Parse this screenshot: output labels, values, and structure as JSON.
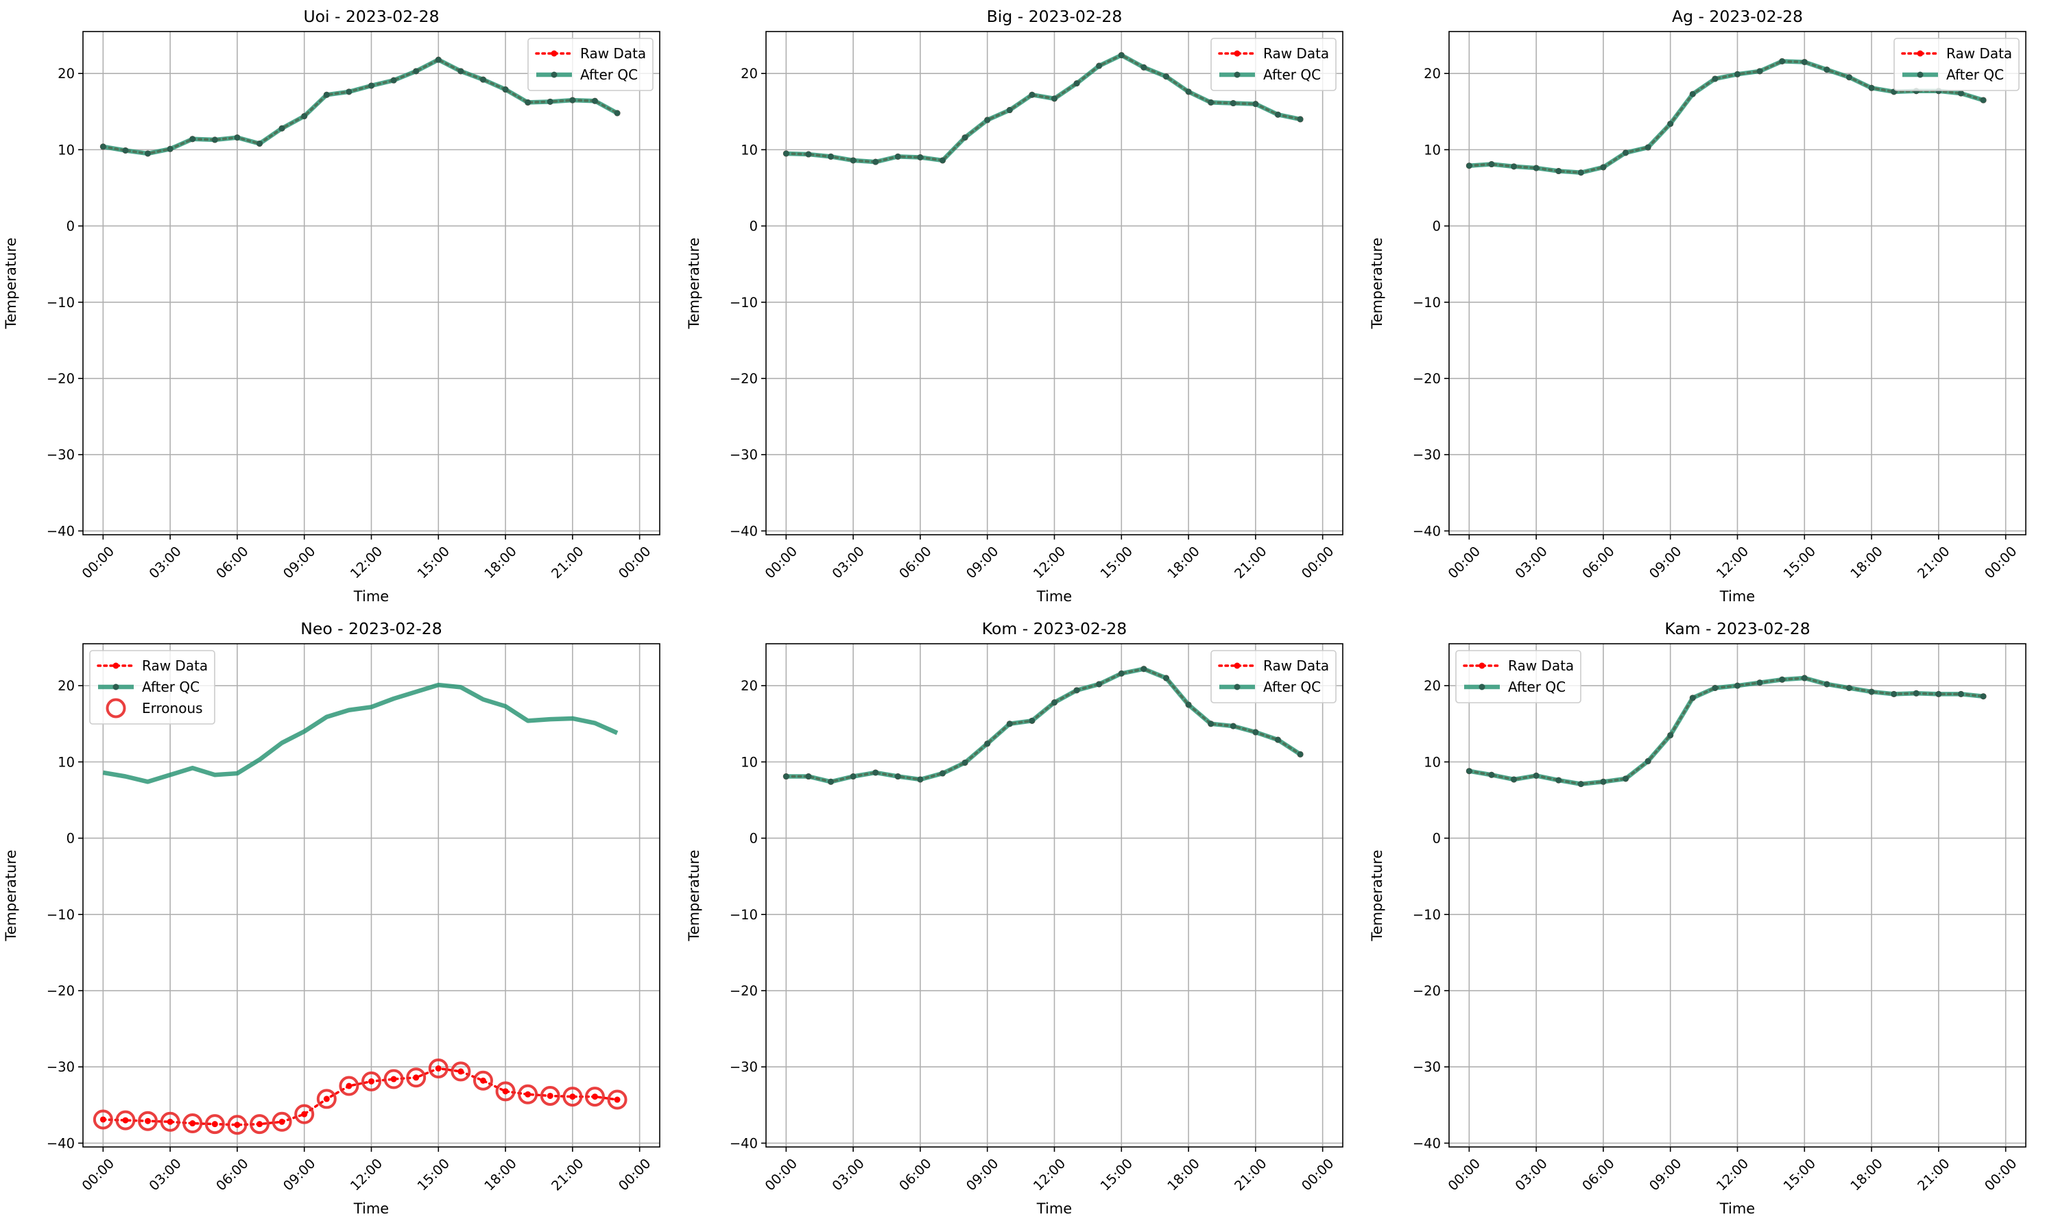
{
  "figure": {
    "colors": {
      "raw": "#ff0000",
      "qc": "#20906e",
      "qc_marker": "#2c5e4f",
      "erroneous": "#e82a2a",
      "grid": "#b0b0b0"
    }
  },
  "chart_data": [
    {
      "type": "line",
      "title": "Uoi - 2023-02-28",
      "xlabel": "Time",
      "ylabel": "Temperature",
      "xticks": [
        "00:00",
        "03:00",
        "06:00",
        "09:00",
        "12:00",
        "15:00",
        "18:00",
        "21:00",
        "00:00"
      ],
      "xlim": [
        -0.9,
        24.9
      ],
      "yticks": [
        20,
        10,
        0,
        -10,
        -20,
        -30,
        -40
      ],
      "ytick_labels": [
        "20",
        "10",
        "0",
        "−10",
        "−20",
        "−30",
        "−40"
      ],
      "ylim": [
        -40.5,
        25.5
      ],
      "grid": true,
      "legend_position": "upper right",
      "legend": [
        "Raw Data",
        "After QC"
      ],
      "x": [
        0,
        1,
        2,
        3,
        4,
        5,
        6,
        7,
        8,
        9,
        10,
        11,
        12,
        13,
        14,
        15,
        16,
        17,
        18,
        19,
        20,
        21,
        22,
        23
      ],
      "series": [
        {
          "name": "Raw Data",
          "style": "raw",
          "values": [
            10.4,
            9.9,
            9.5,
            10.1,
            11.4,
            11.3,
            11.6,
            10.8,
            12.8,
            14.4,
            17.2,
            17.6,
            18.4,
            19.1,
            20.3,
            21.8,
            20.3,
            19.2,
            17.9,
            16.2,
            16.3,
            16.5,
            16.4,
            14.8
          ]
        },
        {
          "name": "After QC",
          "style": "qc",
          "values": [
            10.4,
            9.9,
            9.5,
            10.1,
            11.4,
            11.3,
            11.6,
            10.8,
            12.8,
            14.4,
            17.2,
            17.6,
            18.4,
            19.1,
            20.3,
            21.8,
            20.3,
            19.2,
            17.9,
            16.2,
            16.3,
            16.5,
            16.4,
            14.8
          ]
        }
      ]
    },
    {
      "type": "line",
      "title": "Big - 2023-02-28",
      "xlabel": "Time",
      "ylabel": "Temperature",
      "xticks": [
        "00:00",
        "03:00",
        "06:00",
        "09:00",
        "12:00",
        "15:00",
        "18:00",
        "21:00",
        "00:00"
      ],
      "xlim": [
        -0.9,
        24.9
      ],
      "yticks": [
        20,
        10,
        0,
        -10,
        -20,
        -30,
        -40
      ],
      "ytick_labels": [
        "20",
        "10",
        "0",
        "−10",
        "−20",
        "−30",
        "−40"
      ],
      "ylim": [
        -40.5,
        25.5
      ],
      "grid": true,
      "legend_position": "upper right",
      "legend": [
        "Raw Data",
        "After QC"
      ],
      "x": [
        0,
        1,
        2,
        3,
        4,
        5,
        6,
        7,
        8,
        9,
        10,
        11,
        12,
        13,
        14,
        15,
        16,
        17,
        18,
        19,
        20,
        21,
        22,
        23
      ],
      "series": [
        {
          "name": "Raw Data",
          "style": "raw",
          "values": [
            9.5,
            9.4,
            9.1,
            8.6,
            8.4,
            9.1,
            9.0,
            8.6,
            11.6,
            13.9,
            15.2,
            17.2,
            16.7,
            18.7,
            21.0,
            22.4,
            20.8,
            19.6,
            17.6,
            16.2,
            16.1,
            16.0,
            14.6,
            14.0
          ]
        },
        {
          "name": "After QC",
          "style": "qc",
          "values": [
            9.5,
            9.4,
            9.1,
            8.6,
            8.4,
            9.1,
            9.0,
            8.6,
            11.6,
            13.9,
            15.2,
            17.2,
            16.7,
            18.7,
            21.0,
            22.4,
            20.8,
            19.6,
            17.6,
            16.2,
            16.1,
            16.0,
            14.6,
            14.0
          ]
        }
      ]
    },
    {
      "type": "line",
      "title": "Ag - 2023-02-28",
      "xlabel": "Time",
      "ylabel": "Temperature",
      "xticks": [
        "00:00",
        "03:00",
        "06:00",
        "09:00",
        "12:00",
        "15:00",
        "18:00",
        "21:00",
        "00:00"
      ],
      "xlim": [
        -0.9,
        24.9
      ],
      "yticks": [
        20,
        10,
        0,
        -10,
        -20,
        -30,
        -40
      ],
      "ytick_labels": [
        "20",
        "10",
        "0",
        "−10",
        "−20",
        "−30",
        "−40"
      ],
      "ylim": [
        -40.5,
        25.5
      ],
      "grid": true,
      "legend_position": "upper right",
      "legend": [
        "Raw Data",
        "After QC"
      ],
      "x": [
        0,
        1,
        2,
        3,
        4,
        5,
        6,
        7,
        8,
        9,
        10,
        11,
        12,
        13,
        14,
        15,
        16,
        17,
        18,
        19,
        20,
        21,
        22,
        23
      ],
      "series": [
        {
          "name": "Raw Data",
          "style": "raw",
          "values": [
            7.9,
            8.1,
            7.8,
            7.6,
            7.2,
            7.0,
            7.7,
            9.6,
            10.3,
            13.4,
            17.3,
            19.3,
            19.9,
            20.3,
            21.6,
            21.5,
            20.5,
            19.5,
            18.1,
            17.6,
            17.7,
            17.7,
            17.4,
            16.5
          ]
        },
        {
          "name": "After QC",
          "style": "qc",
          "values": [
            7.9,
            8.1,
            7.8,
            7.6,
            7.2,
            7.0,
            7.7,
            9.6,
            10.3,
            13.4,
            17.3,
            19.3,
            19.9,
            20.3,
            21.6,
            21.5,
            20.5,
            19.5,
            18.1,
            17.6,
            17.7,
            17.7,
            17.4,
            16.5
          ]
        }
      ]
    },
    {
      "type": "line",
      "title": "Neo - 2023-02-28",
      "xlabel": "Time",
      "ylabel": "Temperature",
      "xticks": [
        "00:00",
        "03:00",
        "06:00",
        "09:00",
        "12:00",
        "15:00",
        "18:00",
        "21:00",
        "00:00"
      ],
      "xlim": [
        -0.9,
        24.9
      ],
      "yticks": [
        20,
        10,
        0,
        -10,
        -20,
        -30,
        -40
      ],
      "ytick_labels": [
        "20",
        "10",
        "0",
        "−10",
        "−20",
        "−30",
        "−40"
      ],
      "ylim": [
        -40.5,
        25.5
      ],
      "grid": true,
      "legend_position": "upper left",
      "legend": [
        "Raw Data",
        "After QC",
        "Erronous"
      ],
      "x": [
        0,
        1,
        2,
        3,
        4,
        5,
        6,
        7,
        8,
        9,
        10,
        11,
        12,
        13,
        14,
        15,
        16,
        17,
        18,
        19,
        20,
        21,
        22,
        23
      ],
      "series": [
        {
          "name": "Raw Data",
          "style": "raw",
          "values": [
            -36.9,
            -37.0,
            -37.1,
            -37.2,
            -37.4,
            -37.5,
            -37.6,
            -37.5,
            -37.2,
            -36.2,
            -34.2,
            -32.5,
            -31.9,
            -31.6,
            -31.4,
            -30.2,
            -30.6,
            -31.8,
            -33.2,
            -33.6,
            -33.8,
            -33.9,
            -33.9,
            -34.3
          ]
        },
        {
          "name": "After QC",
          "style": "qc_line",
          "values": [
            8.6,
            8.1,
            7.4,
            8.3,
            9.2,
            8.3,
            8.5,
            10.3,
            12.5,
            14.0,
            15.9,
            16.8,
            17.2,
            18.3,
            19.2,
            20.1,
            19.8,
            18.2,
            17.3,
            15.4,
            15.6,
            15.7,
            15.1,
            13.8
          ]
        },
        {
          "name": "Erronous",
          "style": "erroneous",
          "values": [
            -36.9,
            -37.0,
            -37.1,
            -37.2,
            -37.4,
            -37.5,
            -37.6,
            -37.5,
            -37.2,
            -36.2,
            -34.2,
            -32.5,
            -31.9,
            -31.6,
            -31.4,
            -30.2,
            -30.6,
            -31.8,
            -33.2,
            -33.6,
            -33.8,
            -33.9,
            -33.9,
            -34.3
          ]
        }
      ]
    },
    {
      "type": "line",
      "title": "Kom - 2023-02-28",
      "xlabel": "Time",
      "ylabel": "Temperature",
      "xticks": [
        "00:00",
        "03:00",
        "06:00",
        "09:00",
        "12:00",
        "15:00",
        "18:00",
        "21:00",
        "00:00"
      ],
      "xlim": [
        -0.9,
        24.9
      ],
      "yticks": [
        20,
        10,
        0,
        -10,
        -20,
        -30,
        -40
      ],
      "ytick_labels": [
        "20",
        "10",
        "0",
        "−10",
        "−20",
        "−30",
        "−40"
      ],
      "ylim": [
        -40.5,
        25.5
      ],
      "grid": true,
      "legend_position": "upper right",
      "legend": [
        "Raw Data",
        "After QC"
      ],
      "x": [
        0,
        1,
        2,
        3,
        4,
        5,
        6,
        7,
        8,
        9,
        10,
        11,
        12,
        13,
        14,
        15,
        16,
        17,
        18,
        19,
        20,
        21,
        22,
        23
      ],
      "series": [
        {
          "name": "Raw Data",
          "style": "raw",
          "values": [
            8.1,
            8.1,
            7.4,
            8.1,
            8.6,
            8.1,
            7.7,
            8.5,
            9.9,
            12.4,
            15.0,
            15.4,
            17.8,
            19.4,
            20.2,
            21.6,
            22.2,
            21.0,
            17.5,
            15.0,
            14.7,
            13.9,
            12.9,
            11.0
          ]
        },
        {
          "name": "After QC",
          "style": "qc",
          "values": [
            8.1,
            8.1,
            7.4,
            8.1,
            8.6,
            8.1,
            7.7,
            8.5,
            9.9,
            12.4,
            15.0,
            15.4,
            17.8,
            19.4,
            20.2,
            21.6,
            22.2,
            21.0,
            17.5,
            15.0,
            14.7,
            13.9,
            12.9,
            11.0
          ]
        }
      ]
    },
    {
      "type": "line",
      "title": "Kam - 2023-02-28",
      "xlabel": "Time",
      "ylabel": "Temperature",
      "xticks": [
        "00:00",
        "03:00",
        "06:00",
        "09:00",
        "12:00",
        "15:00",
        "18:00",
        "21:00",
        "00:00"
      ],
      "xlim": [
        -0.9,
        24.9
      ],
      "yticks": [
        20,
        10,
        0,
        -10,
        -20,
        -30,
        -40
      ],
      "ytick_labels": [
        "20",
        "10",
        "0",
        "−10",
        "−20",
        "−30",
        "−40"
      ],
      "ylim": [
        -40.5,
        25.5
      ],
      "grid": true,
      "legend_position": "upper left",
      "legend": [
        "Raw Data",
        "After QC"
      ],
      "x": [
        0,
        1,
        2,
        3,
        4,
        5,
        6,
        7,
        8,
        9,
        10,
        11,
        12,
        13,
        14,
        15,
        16,
        17,
        18,
        19,
        20,
        21,
        22,
        23
      ],
      "series": [
        {
          "name": "Raw Data",
          "style": "raw",
          "values": [
            8.8,
            8.3,
            7.7,
            8.2,
            7.6,
            7.1,
            7.4,
            7.8,
            10.1,
            13.5,
            18.4,
            19.7,
            20.0,
            20.4,
            20.8,
            21.0,
            20.2,
            19.7,
            19.2,
            18.9,
            19.0,
            18.9,
            18.9,
            18.6
          ]
        },
        {
          "name": "After QC",
          "style": "qc",
          "values": [
            8.8,
            8.3,
            7.7,
            8.2,
            7.6,
            7.1,
            7.4,
            7.8,
            10.1,
            13.5,
            18.4,
            19.7,
            20.0,
            20.4,
            20.8,
            21.0,
            20.2,
            19.7,
            19.2,
            18.9,
            19.0,
            18.9,
            18.9,
            18.6
          ]
        }
      ]
    }
  ]
}
